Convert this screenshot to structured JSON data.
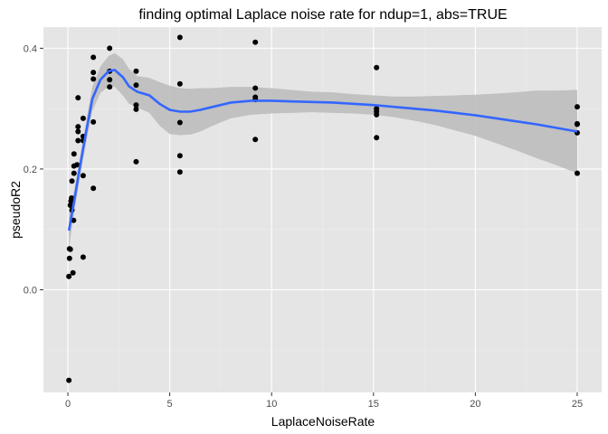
{
  "chart_data": {
    "type": "scatter",
    "title": "finding optimal Laplace noise rate for ndup=1, abs=TRUE",
    "xlabel": "LaplaceNoiseRate",
    "ylabel": "pseudoR2",
    "xlim": [
      -1.2,
      26.2
    ],
    "ylim": [
      -0.17,
      0.435
    ],
    "xticks": [
      0,
      5,
      10,
      15,
      20,
      25
    ],
    "yticks": [
      0.0,
      0.2,
      0.4
    ],
    "xtick_labels": [
      "0",
      "5",
      "10",
      "15",
      "20",
      "25"
    ],
    "ytick_labels": [
      "0.0",
      "0.2",
      "0.4"
    ],
    "grid": true,
    "colors": {
      "panel_background": "#e5e5e5",
      "grid_major": "#ffffff",
      "grid_minor": "#f0f0f0",
      "points": "#000000",
      "smooth_line": "#3366ff",
      "confidence_band": "#bdbdbd"
    },
    "points": [
      {
        "x": 0.05,
        "y": -0.15
      },
      {
        "x": 0.05,
        "y": 0.022
      },
      {
        "x": 0.08,
        "y": 0.052
      },
      {
        "x": 0.08,
        "y": 0.068
      },
      {
        "x": 0.12,
        "y": 0.067
      },
      {
        "x": 0.12,
        "y": 0.14
      },
      {
        "x": 0.15,
        "y": 0.147
      },
      {
        "x": 0.18,
        "y": 0.152
      },
      {
        "x": 0.2,
        "y": 0.18
      },
      {
        "x": 0.2,
        "y": 0.132
      },
      {
        "x": 0.25,
        "y": 0.028
      },
      {
        "x": 0.28,
        "y": 0.115
      },
      {
        "x": 0.3,
        "y": 0.205
      },
      {
        "x": 0.3,
        "y": 0.193
      },
      {
        "x": 0.3,
        "y": 0.225
      },
      {
        "x": 0.45,
        "y": 0.207
      },
      {
        "x": 0.5,
        "y": 0.247
      },
      {
        "x": 0.5,
        "y": 0.262
      },
      {
        "x": 0.5,
        "y": 0.27
      },
      {
        "x": 0.5,
        "y": 0.318
      },
      {
        "x": 0.75,
        "y": 0.247
      },
      {
        "x": 0.75,
        "y": 0.254
      },
      {
        "x": 0.75,
        "y": 0.284
      },
      {
        "x": 0.75,
        "y": 0.189
      },
      {
        "x": 0.75,
        "y": 0.054
      },
      {
        "x": 1.25,
        "y": 0.385
      },
      {
        "x": 1.25,
        "y": 0.36
      },
      {
        "x": 1.25,
        "y": 0.349
      },
      {
        "x": 1.25,
        "y": 0.278
      },
      {
        "x": 1.25,
        "y": 0.168
      },
      {
        "x": 2.05,
        "y": 0.4
      },
      {
        "x": 2.05,
        "y": 0.362
      },
      {
        "x": 2.05,
        "y": 0.348
      },
      {
        "x": 2.05,
        "y": 0.336
      },
      {
        "x": 3.35,
        "y": 0.362
      },
      {
        "x": 3.35,
        "y": 0.339
      },
      {
        "x": 3.35,
        "y": 0.306
      },
      {
        "x": 3.35,
        "y": 0.299
      },
      {
        "x": 3.35,
        "y": 0.212
      },
      {
        "x": 5.5,
        "y": 0.418
      },
      {
        "x": 5.5,
        "y": 0.341
      },
      {
        "x": 5.5,
        "y": 0.277
      },
      {
        "x": 5.5,
        "y": 0.222
      },
      {
        "x": 5.5,
        "y": 0.195
      },
      {
        "x": 9.2,
        "y": 0.41
      },
      {
        "x": 9.2,
        "y": 0.334
      },
      {
        "x": 9.2,
        "y": 0.319
      },
      {
        "x": 9.2,
        "y": 0.315
      },
      {
        "x": 9.2,
        "y": 0.249
      },
      {
        "x": 15.15,
        "y": 0.368
      },
      {
        "x": 15.15,
        "y": 0.3
      },
      {
        "x": 15.15,
        "y": 0.295
      },
      {
        "x": 15.15,
        "y": 0.29
      },
      {
        "x": 15.15,
        "y": 0.252
      },
      {
        "x": 25.0,
        "y": 0.303
      },
      {
        "x": 25.0,
        "y": 0.275
      },
      {
        "x": 25.0,
        "y": 0.274
      },
      {
        "x": 25.0,
        "y": 0.26
      },
      {
        "x": 25.0,
        "y": 0.193
      }
    ],
    "smooth": {
      "x": [
        0.05,
        0.3,
        0.6,
        0.9,
        1.2,
        1.6,
        2.0,
        2.3,
        2.7,
        3.0,
        3.4,
        4.0,
        4.5,
        5.0,
        5.5,
        6.0,
        6.5,
        7.0,
        8.0,
        9.0,
        10.0,
        11.0,
        12.0,
        13.0,
        14.0,
        15.0,
        16.0,
        17.0,
        18.0,
        19.0,
        20.0,
        21.0,
        22.0,
        23.0,
        24.0,
        25.0
      ],
      "y": [
        0.098,
        0.145,
        0.205,
        0.262,
        0.316,
        0.348,
        0.362,
        0.364,
        0.352,
        0.337,
        0.328,
        0.322,
        0.308,
        0.298,
        0.295,
        0.295,
        0.298,
        0.302,
        0.31,
        0.313,
        0.313,
        0.312,
        0.311,
        0.31,
        0.308,
        0.306,
        0.303,
        0.3,
        0.297,
        0.293,
        0.289,
        0.284,
        0.279,
        0.274,
        0.268,
        0.262
      ],
      "lower": [
        0.068,
        0.127,
        0.188,
        0.244,
        0.296,
        0.326,
        0.337,
        0.336,
        0.322,
        0.308,
        0.302,
        0.293,
        0.272,
        0.258,
        0.256,
        0.257,
        0.262,
        0.27,
        0.284,
        0.29,
        0.292,
        0.293,
        0.294,
        0.293,
        0.292,
        0.29,
        0.286,
        0.28,
        0.273,
        0.264,
        0.255,
        0.243,
        0.231,
        0.218,
        0.206,
        0.193
      ],
      "upper": [
        0.128,
        0.163,
        0.222,
        0.28,
        0.336,
        0.37,
        0.387,
        0.392,
        0.382,
        0.366,
        0.354,
        0.351,
        0.344,
        0.338,
        0.334,
        0.333,
        0.334,
        0.334,
        0.336,
        0.336,
        0.334,
        0.331,
        0.328,
        0.327,
        0.324,
        0.322,
        0.32,
        0.32,
        0.321,
        0.322,
        0.323,
        0.325,
        0.327,
        0.33,
        0.33,
        0.331
      ]
    }
  }
}
